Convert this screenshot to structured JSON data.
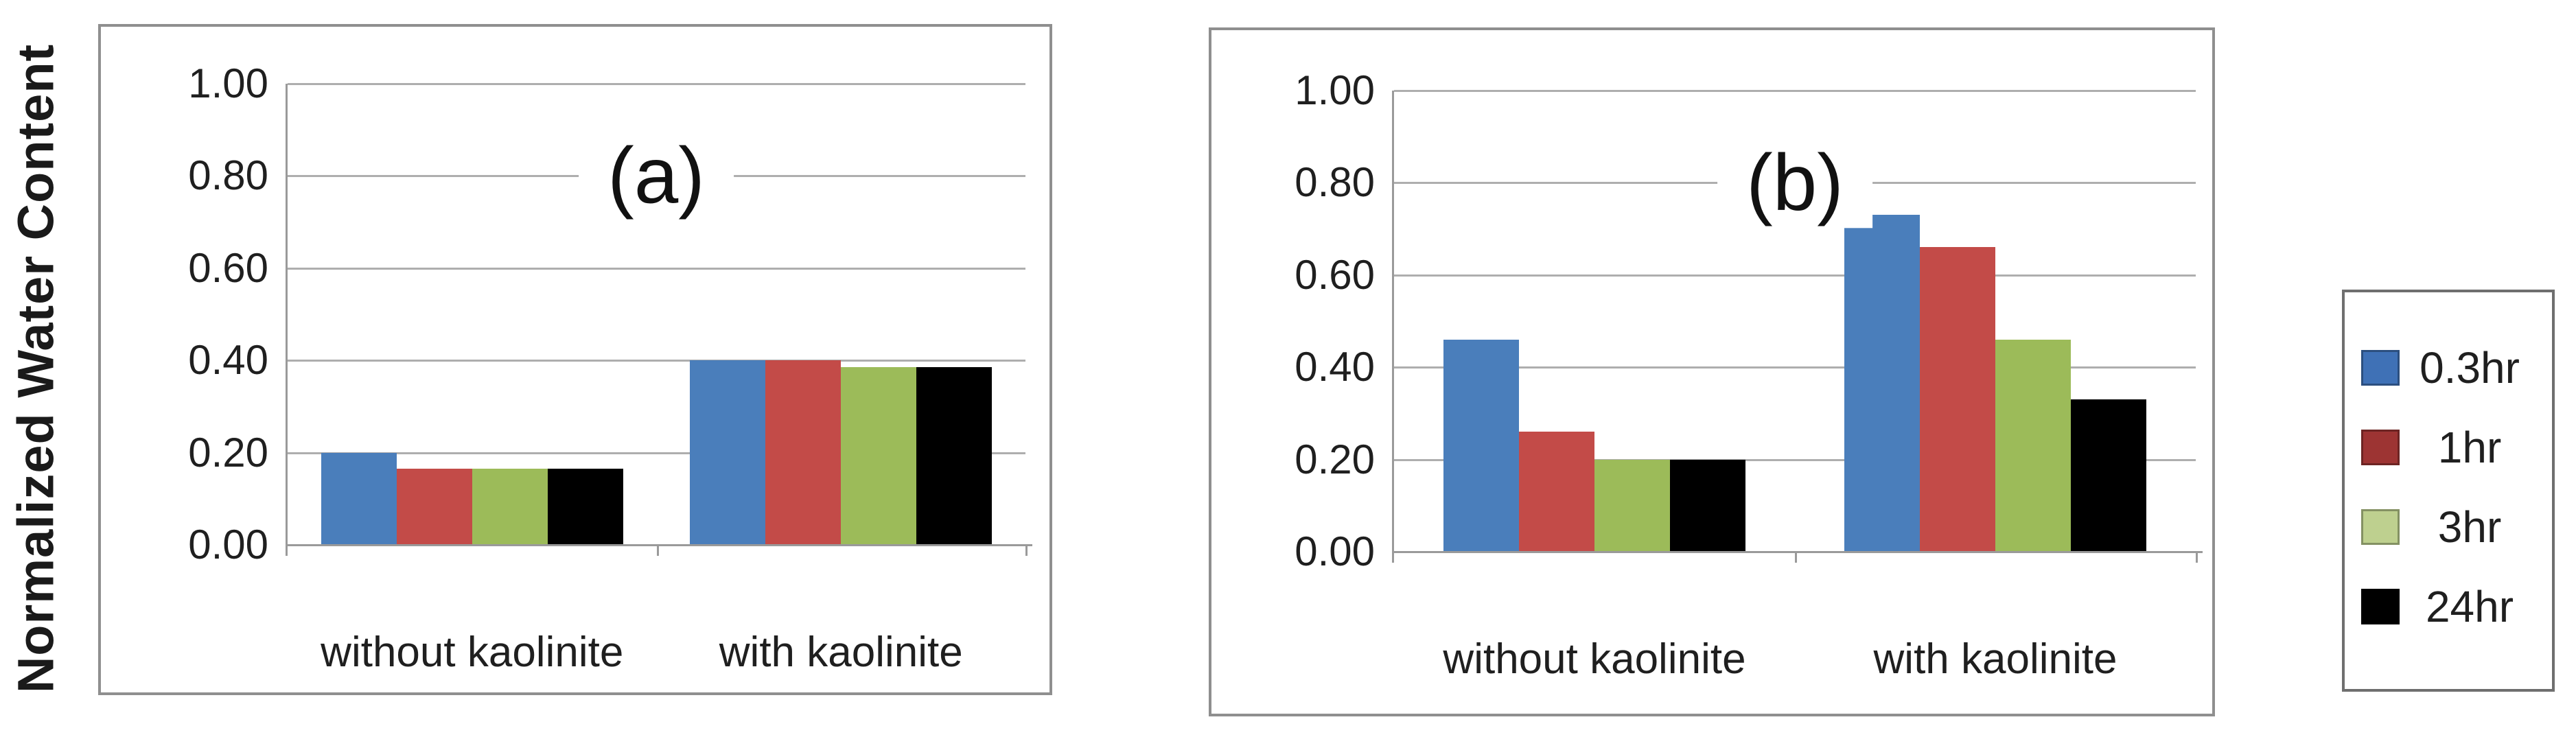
{
  "y_axis_title": "Normalized Water Content",
  "colors": {
    "bar_blue": "#4A7EBB",
    "bar_red": "#C34B48",
    "bar_green": "#9CBB59",
    "bar_black": "#000000",
    "legend_blue": "#3F71B6",
    "legend_red": "#9D3433",
    "legend_green": "#BED08F",
    "legend_black": "#000000",
    "gridline": "#AEAEAE",
    "panel_border": "#8F8F8F"
  },
  "legend": {
    "position": "right-of-charts",
    "items": [
      {
        "label": "0.3hr",
        "color": "#3F71B6"
      },
      {
        "label": "1hr",
        "color": "#9D3433"
      },
      {
        "label": "3hr",
        "color": "#BED08F"
      },
      {
        "label": "24hr",
        "color": "#000000"
      }
    ]
  },
  "chart_data": [
    {
      "type": "bar",
      "panel_label": "(a)",
      "title": "(a)",
      "xlabel": "",
      "ylabel": "Normalized Water Content",
      "ylim": [
        0,
        1.0
      ],
      "grid": true,
      "yticks": [
        "1.00",
        "0.80",
        "0.60",
        "0.40",
        "0.20",
        "0.00"
      ],
      "categories": [
        "without kaolinite",
        "with kaolinite"
      ],
      "series": [
        {
          "name": "0.3hr",
          "color": "#4A7EBB",
          "values": [
            0.2,
            0.4
          ]
        },
        {
          "name": "1hr",
          "color": "#C34B48",
          "values": [
            0.165,
            0.4
          ]
        },
        {
          "name": "3hr",
          "color": "#9CBB59",
          "values": [
            0.165,
            0.385
          ]
        },
        {
          "name": "24hr",
          "color": "#000000",
          "values": [
            0.165,
            0.385
          ]
        }
      ]
    },
    {
      "type": "bar",
      "panel_label": "(b)",
      "title": "(b)",
      "xlabel": "",
      "ylabel": "Normalized Water Content",
      "ylim": [
        0,
        1.0
      ],
      "grid": true,
      "yticks": [
        "1.00",
        "0.80",
        "0.60",
        "0.40",
        "0.20",
        "0.00"
      ],
      "categories": [
        "without kaolinite",
        "with kaolinite"
      ],
      "series": [
        {
          "name": "0.3hr",
          "color": "#4A7EBB",
          "values": [
            0.46,
            0.73
          ]
        },
        {
          "name": "1hr",
          "color": "#C34B48",
          "values": [
            0.26,
            0.66
          ]
        },
        {
          "name": "3hr",
          "color": "#9CBB59",
          "values": [
            0.2,
            0.46
          ]
        },
        {
          "name": "24hr",
          "color": "#000000",
          "values": [
            0.2,
            0.33
          ]
        }
      ]
    }
  ]
}
